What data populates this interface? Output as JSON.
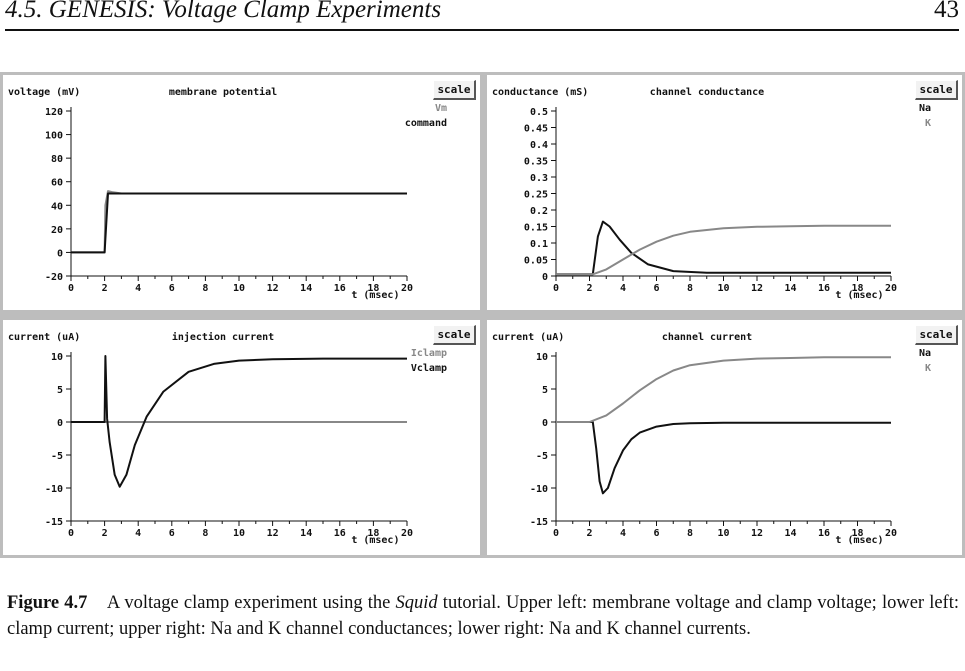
{
  "header": {
    "section_title": "4.5. GENESIS: Voltage Clamp Experiments",
    "page_number": "43"
  },
  "panels": [
    {
      "id": "upper-left",
      "ylabel": "voltage (mV)",
      "title": "membrane potential",
      "scale_label": "scale",
      "xlabel": "t (msec)",
      "legend": [
        {
          "label": "Vm",
          "color": "#888888"
        },
        {
          "label": "command",
          "color": "#111111"
        }
      ],
      "xticks": [
        "0",
        "2",
        "4",
        "6",
        "8",
        "10",
        "12",
        "14",
        "16",
        "18",
        "20"
      ],
      "yticks": [
        "120",
        "100",
        "80",
        "60",
        "40",
        "20",
        "0",
        "-20"
      ]
    },
    {
      "id": "upper-right",
      "ylabel": "conductance (mS)",
      "title": "channel conductance",
      "scale_label": "scale",
      "xlabel": "t (msec)",
      "legend": [
        {
          "label": "Na",
          "color": "#111111"
        },
        {
          "label": "K",
          "color": "#888888"
        }
      ],
      "xticks": [
        "0",
        "2",
        "4",
        "6",
        "8",
        "10",
        "12",
        "14",
        "16",
        "18",
        "20"
      ],
      "yticks": [
        "0.5",
        "0.45",
        "0.4",
        "0.35",
        "0.3",
        "0.25",
        "0.2",
        "0.15",
        "0.1",
        "0.05",
        "0"
      ]
    },
    {
      "id": "lower-left",
      "ylabel": "current (uA)",
      "title": "injection current",
      "scale_label": "scale",
      "xlabel": "t (msec)",
      "legend": [
        {
          "label": "Iclamp",
          "color": "#888888"
        },
        {
          "label": "Vclamp",
          "color": "#111111"
        }
      ],
      "xticks": [
        "0",
        "2",
        "4",
        "6",
        "8",
        "10",
        "12",
        "14",
        "16",
        "18",
        "20"
      ],
      "yticks": [
        "10",
        "5",
        "0",
        "-5",
        "-10",
        "-15"
      ]
    },
    {
      "id": "lower-right",
      "ylabel": "current (uA)",
      "title": "channel current",
      "scale_label": "scale",
      "xlabel": "t (msec)",
      "legend": [
        {
          "label": "Na",
          "color": "#111111"
        },
        {
          "label": "K",
          "color": "#888888"
        }
      ],
      "xticks": [
        "0",
        "2",
        "4",
        "6",
        "8",
        "10",
        "12",
        "14",
        "16",
        "18",
        "20"
      ],
      "yticks": [
        "10",
        "5",
        "0",
        "-5",
        "-10",
        "-15"
      ]
    }
  ],
  "chart_data": [
    {
      "type": "line",
      "title": "membrane potential",
      "xlabel": "t (msec)",
      "ylabel": "voltage (mV)",
      "xlim": [
        0,
        20
      ],
      "ylim": [
        -20,
        120
      ],
      "series": [
        {
          "name": "Vm",
          "color": "#888888",
          "x": [
            0,
            2,
            2.05,
            2.2,
            2.5,
            3,
            20
          ],
          "y": [
            0,
            0,
            40,
            52,
            51,
            50,
            50
          ]
        },
        {
          "name": "command",
          "color": "#111111",
          "x": [
            0,
            2,
            2.2,
            20
          ],
          "y": [
            0,
            0,
            50,
            50
          ]
        }
      ]
    },
    {
      "type": "line",
      "title": "channel conductance",
      "xlabel": "t (msec)",
      "ylabel": "conductance (mS)",
      "xlim": [
        0,
        20
      ],
      "ylim": [
        0,
        0.5
      ],
      "series": [
        {
          "name": "Na",
          "color": "#111111",
          "x": [
            0,
            2.2,
            2.5,
            2.8,
            3.2,
            3.8,
            4.5,
            5.5,
            7,
            9,
            12,
            20
          ],
          "y": [
            0.005,
            0.005,
            0.12,
            0.165,
            0.15,
            0.11,
            0.07,
            0.035,
            0.015,
            0.01,
            0.01,
            0.01
          ]
        },
        {
          "name": "K",
          "color": "#888888",
          "x": [
            0,
            2.2,
            3,
            4,
            5,
            6,
            7,
            8,
            10,
            12,
            14,
            16,
            20
          ],
          "y": [
            0.005,
            0.005,
            0.02,
            0.05,
            0.08,
            0.104,
            0.122,
            0.134,
            0.145,
            0.149,
            0.151,
            0.152,
            0.152
          ]
        }
      ]
    },
    {
      "type": "line",
      "title": "injection current",
      "xlabel": "t (msec)",
      "ylabel": "current (uA)",
      "xlim": [
        0,
        20
      ],
      "ylim": [
        -15,
        10
      ],
      "series": [
        {
          "name": "Iclamp",
          "color": "#888888",
          "x": [
            0,
            20
          ],
          "y": [
            0,
            0
          ]
        },
        {
          "name": "Vclamp",
          "color": "#111111",
          "x": [
            0,
            2,
            2.05,
            2.15,
            2.3,
            2.6,
            2.9,
            3.3,
            3.8,
            4.5,
            5.5,
            7,
            8.5,
            10,
            12,
            15,
            20
          ],
          "y": [
            0,
            0,
            10,
            0.5,
            -3,
            -8,
            -9.8,
            -8,
            -3.5,
            0.8,
            4.6,
            7.6,
            8.8,
            9.3,
            9.5,
            9.6,
            9.6
          ]
        }
      ]
    },
    {
      "type": "line",
      "title": "channel current",
      "xlabel": "t (msec)",
      "ylabel": "current (uA)",
      "xlim": [
        0,
        20
      ],
      "ylim": [
        -15,
        10
      ],
      "series": [
        {
          "name": "Na",
          "color": "#111111",
          "x": [
            0,
            2.2,
            2.4,
            2.6,
            2.8,
            3.1,
            3.5,
            4,
            4.5,
            5,
            6,
            7,
            8,
            10,
            20
          ],
          "y": [
            0,
            0,
            -4,
            -9,
            -10.8,
            -10,
            -7,
            -4.3,
            -2.6,
            -1.6,
            -0.7,
            -0.3,
            -0.2,
            -0.1,
            -0.1
          ]
        },
        {
          "name": "K",
          "color": "#888888",
          "x": [
            0,
            2,
            3,
            4,
            5,
            6,
            7,
            8,
            10,
            12,
            14,
            16,
            20
          ],
          "y": [
            0,
            0,
            1,
            2.8,
            4.8,
            6.5,
            7.8,
            8.6,
            9.3,
            9.6,
            9.7,
            9.8,
            9.8
          ]
        }
      ]
    }
  ],
  "caption": {
    "label": "Figure 4.7",
    "text_before": "A voltage clamp experiment using the ",
    "italic": "Squid",
    "text_after": " tutorial. Upper left: membrane voltage and clamp voltage; lower left: clamp current; upper right: Na and K channel conductances; lower right: Na and K channel currents."
  }
}
